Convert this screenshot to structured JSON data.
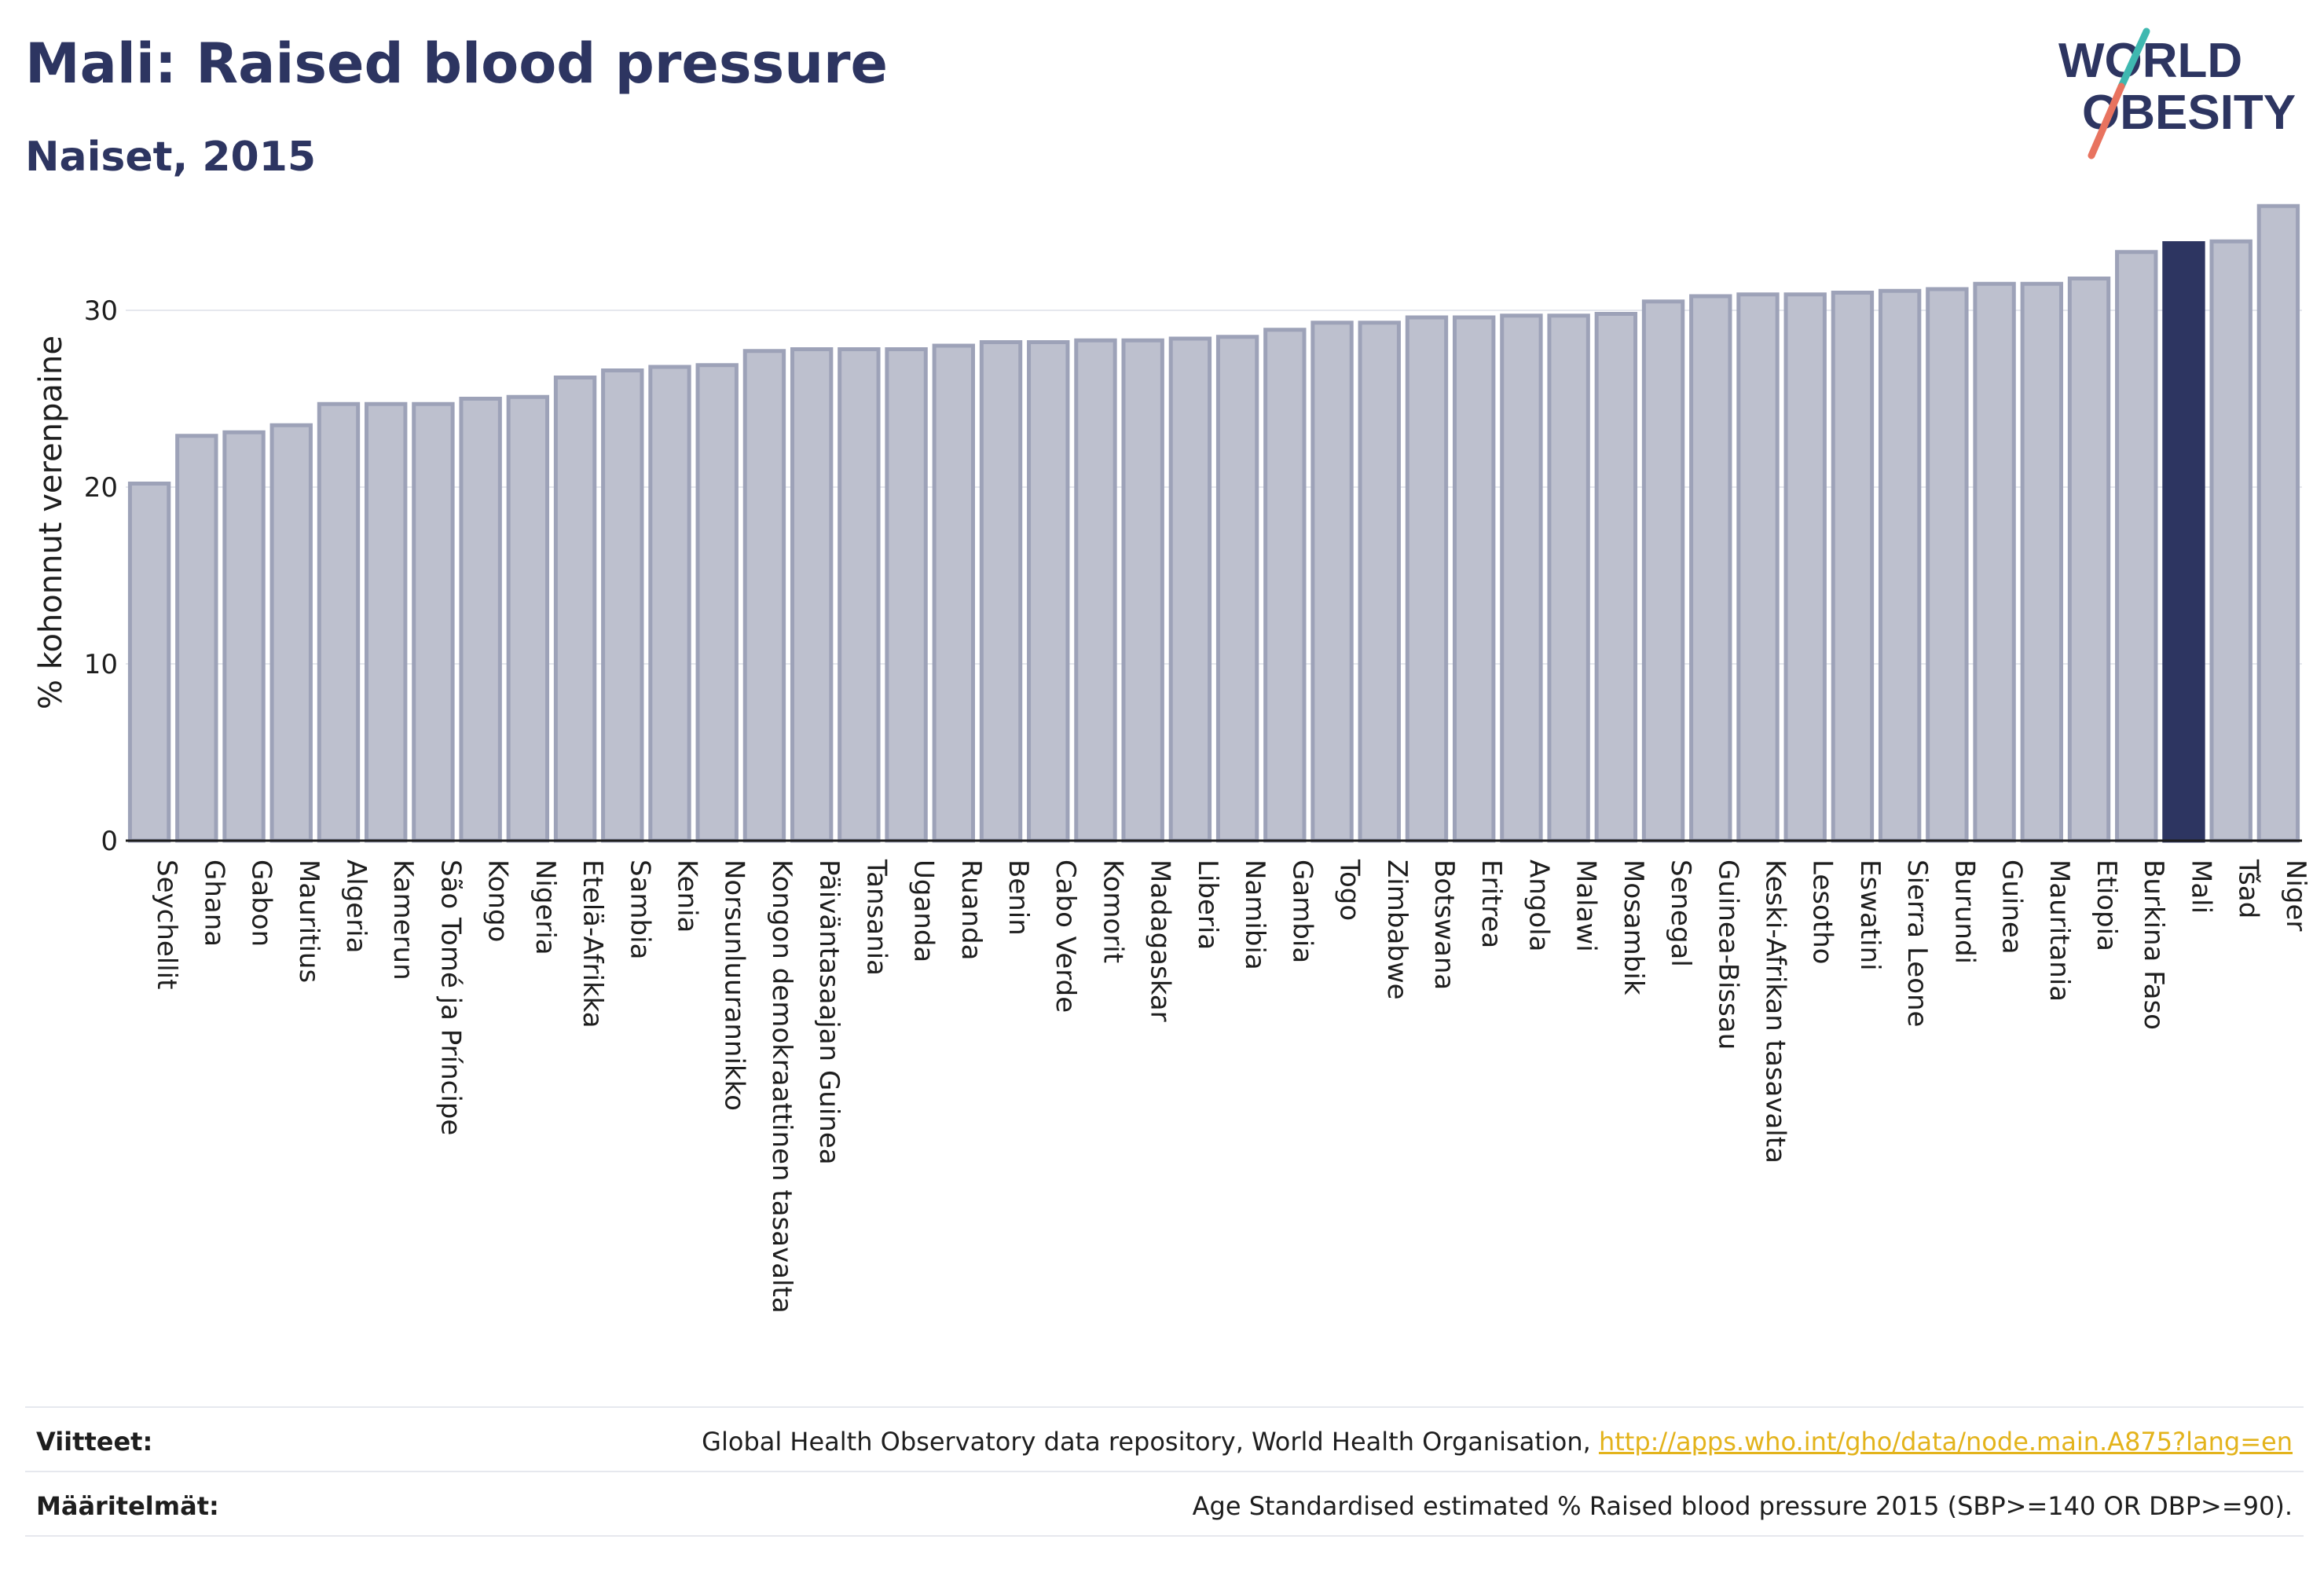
{
  "header": {
    "title": "Mali: Raised blood pressure",
    "subtitle": "Naiset, 2015"
  },
  "logo": {
    "line1": "WORLD",
    "line2": "OBESITY",
    "accent_teal": "#3fb8b0",
    "accent_coral": "#e8735f",
    "text_color": "#2d3561"
  },
  "colors": {
    "bar_fill": "#bdc0ce",
    "bar_stroke": "#9da2b8",
    "highlight": "#2d3561",
    "grid": "#e6e8ee"
  },
  "chart_data": {
    "type": "bar",
    "title": "Mali: Raised blood pressure",
    "subtitle": "Naiset, 2015",
    "ylabel": "% kohonnut verenpaine",
    "xlabel": "",
    "ylim": [
      0,
      36
    ],
    "yticks": [
      0,
      10,
      20,
      30
    ],
    "grid": "horizontal",
    "highlight_category": "Mali",
    "categories": [
      "Seychellit",
      "Ghana",
      "Gabon",
      "Mauritius",
      "Algeria",
      "Kamerun",
      "São Tomé ja Príncipe",
      "Kongo",
      "Nigeria",
      "Etelä-Afrikka",
      "Sambia",
      "Kenia",
      "Norsunluurannikko",
      "Kongon demokraattinen tasavalta",
      "Päiväntasaajan Guinea",
      "Tansania",
      "Uganda",
      "Ruanda",
      "Benin",
      "Cabo Verde",
      "Komorit",
      "Madagaskar",
      "Liberia",
      "Namibia",
      "Gambia",
      "Togo",
      "Zimbabwe",
      "Botswana",
      "Eritrea",
      "Angola",
      "Malawi",
      "Mosambik",
      "Senegal",
      "Guinea-Bissau",
      "Keski-Afrikan tasavalta",
      "Lesotho",
      "Eswatini",
      "Sierra Leone",
      "Burundi",
      "Guinea",
      "Mauritania",
      "Etiopia",
      "Burkina Faso",
      "Mali",
      "Tšad",
      "Niger"
    ],
    "values": [
      20.2,
      22.9,
      23.1,
      23.5,
      24.7,
      24.7,
      24.7,
      25.0,
      25.1,
      26.2,
      26.6,
      26.8,
      26.9,
      27.7,
      27.8,
      27.8,
      27.8,
      28.0,
      28.2,
      28.2,
      28.3,
      28.3,
      28.4,
      28.5,
      28.9,
      29.3,
      29.3,
      29.6,
      29.6,
      29.7,
      29.7,
      29.8,
      30.5,
      30.8,
      30.9,
      30.9,
      31.0,
      31.1,
      31.2,
      31.5,
      31.5,
      31.8,
      33.3,
      33.8,
      33.9,
      35.9
    ]
  },
  "footer": {
    "references_label": "Viitteet:",
    "references_text": "Global Health Observatory data repository, World Health Organisation,",
    "references_link": "http://apps.who.int/gho/data/node.main.A875?lang=en",
    "definitions_label": "Määritelmät:",
    "definitions_text": "Age Standardised estimated % Raised blood pressure 2015 (SBP>=140 OR DBP>=90)."
  }
}
